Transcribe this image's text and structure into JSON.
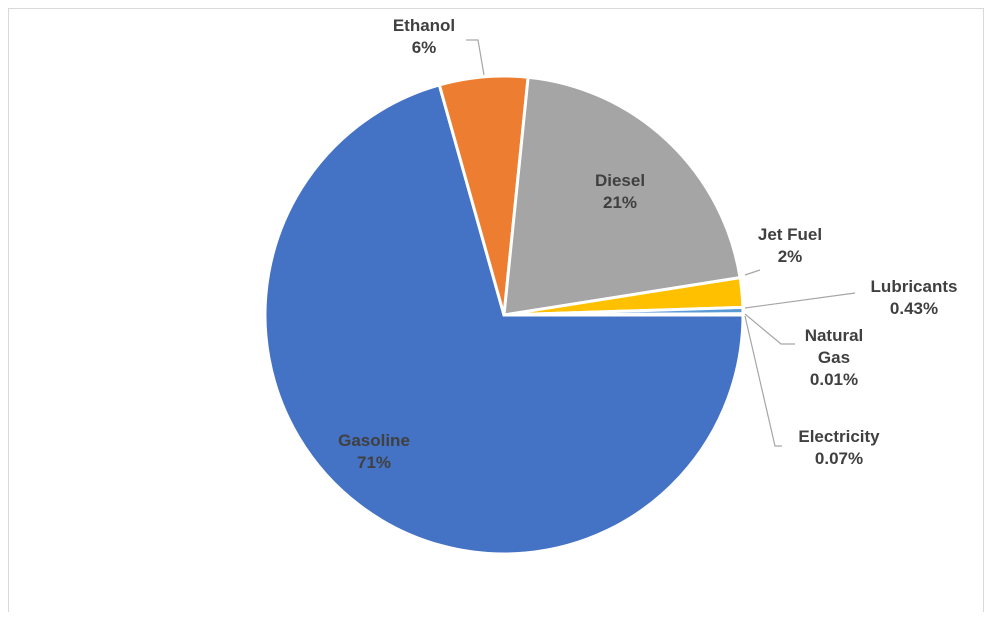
{
  "chart_data": {
    "type": "pie",
    "title": "",
    "slices": [
      {
        "name": "Gasoline",
        "value": 71,
        "label": "71%",
        "color": "#4472C4"
      },
      {
        "name": "Ethanol",
        "value": 6,
        "label": "6%",
        "color": "#ED7D31"
      },
      {
        "name": "Diesel",
        "value": 21,
        "label": "21%",
        "color": "#A5A5A5"
      },
      {
        "name": "Jet Fuel",
        "value": 2,
        "label": "2%",
        "color": "#FFC000"
      },
      {
        "name": "Lubricants",
        "value": 0.43,
        "label": "0.43%",
        "color": "#5B9BD5"
      },
      {
        "name": "Natural Gas",
        "value": 0.01,
        "label": "0.01%",
        "color": "#70AD47"
      },
      {
        "name": "Electricity",
        "value": 0.07,
        "label": "0.07%",
        "color": "#264478"
      }
    ],
    "legend": "none"
  }
}
